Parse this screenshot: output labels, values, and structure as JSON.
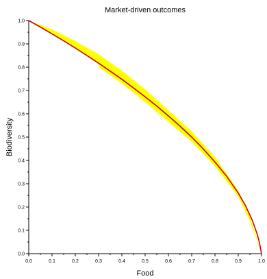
{
  "chart_data": {
    "type": "area",
    "title": "Market-driven outcomes",
    "xlabel": "Food",
    "ylabel": "Biodiversity",
    "xlim": [
      0,
      1
    ],
    "ylim": [
      0,
      1
    ],
    "xticks": [
      "0.0",
      "0.1",
      "0.2",
      "0.3",
      "0.4",
      "0.5",
      "0.6",
      "0.7",
      "0.8",
      "0.9",
      "1.0"
    ],
    "yticks": [
      "0.0",
      "0.1",
      "0.2",
      "0.3",
      "0.4",
      "0.5",
      "0.6",
      "0.7",
      "0.8",
      "0.9",
      "1.0"
    ],
    "grid": false,
    "series": [
      {
        "kind": "line",
        "color": "#cc0000",
        "x": [
          0.0,
          0.05,
          0.1,
          0.15,
          0.2,
          0.25,
          0.3,
          0.35,
          0.4,
          0.45,
          0.5,
          0.55,
          0.6,
          0.65,
          0.7,
          0.75,
          0.8,
          0.85,
          0.9,
          0.93,
          0.96,
          0.98,
          0.99,
          1.0
        ],
        "y": [
          1.0,
          0.972,
          0.943,
          0.913,
          0.882,
          0.85,
          0.817,
          0.783,
          0.748,
          0.711,
          0.673,
          0.633,
          0.591,
          0.547,
          0.5,
          0.449,
          0.393,
          0.332,
          0.26,
          0.208,
          0.144,
          0.088,
          0.052,
          0.0
        ]
      },
      {
        "kind": "band",
        "color": "#ffff00",
        "x": [
          0.0,
          0.1,
          0.2,
          0.3,
          0.3,
          0.4,
          0.5,
          0.6,
          0.7,
          0.8,
          0.9,
          0.95,
          1.0
        ],
        "upper": [
          1.0,
          0.962,
          0.912,
          0.855,
          0.855,
          0.785,
          0.705,
          0.615,
          0.525,
          0.415,
          0.27,
          0.16,
          0.0
        ],
        "lower": [
          1.0,
          0.945,
          0.88,
          0.82,
          0.8,
          0.73,
          0.65,
          0.565,
          0.48,
          0.375,
          0.245,
          0.14,
          0.0
        ]
      }
    ]
  }
}
